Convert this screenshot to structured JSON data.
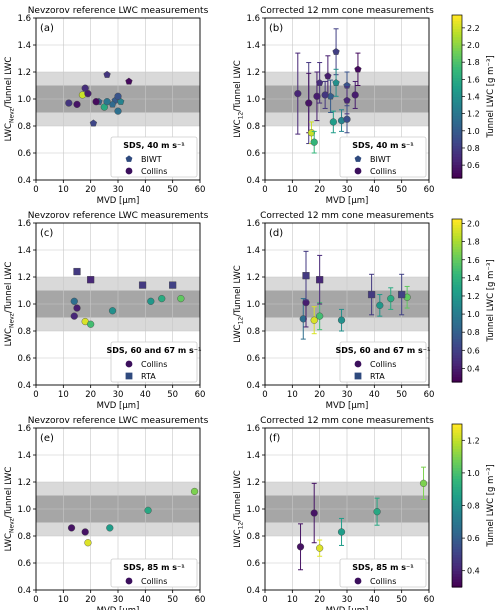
{
  "colors": {
    "band_outer": "#d9d9d9",
    "band_inner": "#a6a6a6",
    "viridis": [
      "#440154",
      "#482878",
      "#3e4989",
      "#31688e",
      "#26828e",
      "#1f9e89",
      "#35b779",
      "#6ece58",
      "#b5de2b",
      "#fde725"
    ]
  },
  "chart_data": [
    {
      "id": "a",
      "type": "scatter",
      "panel_label": "(a)",
      "title": "Nevzorov reference LWC measurements",
      "xlabel": "MVD [µm]",
      "ylabel_main": "LWC",
      "ylabel_sub": "Nevz",
      "ylabel_rest": "/Tunnel LWC",
      "xlim": [
        0,
        60
      ],
      "ylim": [
        0.4,
        1.6
      ],
      "xticks": [
        "0",
        "10",
        "20",
        "30",
        "40",
        "50",
        "60"
      ],
      "yticks": [
        "0.4",
        "0.6",
        "0.8",
        "1.0",
        "1.2",
        "1.4",
        "1.6"
      ],
      "grid": true,
      "legend_position": "bottom-right",
      "legend_title": "SDS, 40 m s⁻¹",
      "legend_items": [
        {
          "label": "BIWT",
          "marker": "pentagon"
        },
        {
          "label": "Collins",
          "marker": "circle"
        }
      ],
      "colorbar": {
        "present": true,
        "label": "Tunnel LWC [g m⁻³]",
        "ticks": [
          "0.6",
          "0.8",
          "1.0",
          "1.2",
          "1.4",
          "1.6",
          "1.8",
          "2.0",
          "2.2"
        ],
        "range": [
          0.45,
          2.35
        ]
      },
      "series": [
        {
          "name": "BIWT",
          "marker": "pentagon",
          "points": [
            {
              "x": 21,
              "y": 0.82,
              "c": 0.85
            },
            {
              "x": 23,
              "y": 0.98,
              "c": 1.05
            },
            {
              "x": 26,
              "y": 1.18,
              "c": 0.75
            },
            {
              "x": 29,
              "y": 0.99,
              "c": 1.0
            },
            {
              "x": 31,
              "y": 0.98,
              "c": 1.3
            },
            {
              "x": 34,
              "y": 1.13,
              "c": 0.5
            },
            {
              "x": 28,
              "y": 0.96,
              "c": 1.1
            }
          ]
        },
        {
          "name": "Collins",
          "marker": "circle",
          "points": [
            {
              "x": 12,
              "y": 0.97,
              "c": 0.75
            },
            {
              "x": 15,
              "y": 0.96,
              "c": 0.55
            },
            {
              "x": 17,
              "y": 1.03,
              "c": 2.2
            },
            {
              "x": 18,
              "y": 1.08,
              "c": 0.7
            },
            {
              "x": 19,
              "y": 1.04,
              "c": 0.6
            },
            {
              "x": 22,
              "y": 0.98,
              "c": 0.5
            },
            {
              "x": 25,
              "y": 0.94,
              "c": 1.6
            },
            {
              "x": 26,
              "y": 0.98,
              "c": 1.2
            },
            {
              "x": 30,
              "y": 0.91,
              "c": 1.15
            },
            {
              "x": 30,
              "y": 1.02,
              "c": 0.95
            }
          ]
        }
      ]
    },
    {
      "id": "b",
      "type": "scatter",
      "panel_label": "(b)",
      "title": "Corrected 12 mm cone measurements",
      "xlabel": "MVD [µm]",
      "ylabel_main": "LWC",
      "ylabel_sub": "12",
      "ylabel_rest": "/Tunnel LWC",
      "xlim": [
        0,
        60
      ],
      "ylim": [
        0.4,
        1.6
      ],
      "xticks": [
        "0",
        "10",
        "20",
        "30",
        "40",
        "50",
        "60"
      ],
      "yticks": [
        "0.4",
        "0.6",
        "0.8",
        "1.0",
        "1.2",
        "1.4",
        "1.6"
      ],
      "grid": true,
      "legend_position": "bottom-right",
      "legend_title": "SDS, 40 m s⁻¹",
      "legend_items": [
        {
          "label": "BIWT",
          "marker": "pentagon"
        },
        {
          "label": "Collins",
          "marker": "circle"
        }
      ],
      "colorbar": {
        "present": true,
        "label": "Tunnel LWC [g m⁻³]",
        "ticks": [
          "0.6",
          "0.8",
          "1.0",
          "1.2",
          "1.4",
          "1.6",
          "1.8",
          "2.0",
          "2.2"
        ],
        "range": [
          0.45,
          2.35
        ]
      },
      "series": [
        {
          "name": "BIWT",
          "marker": "pentagon",
          "points": [
            {
              "x": 16,
              "y": 0.97,
              "c": 0.75,
              "err": 0.3
            },
            {
              "x": 20,
              "y": 1.12,
              "c": 0.7,
              "err": 0.15
            },
            {
              "x": 23,
              "y": 1.17,
              "c": 0.6,
              "err": 0.15
            },
            {
              "x": 24,
              "y": 1.02,
              "c": 1.0,
              "err": 0.12
            },
            {
              "x": 26,
              "y": 1.35,
              "c": 0.8,
              "err": 0.17
            },
            {
              "x": 26,
              "y": 1.12,
              "c": 1.4,
              "err": 0.1
            },
            {
              "x": 30,
              "y": 1.1,
              "c": 0.95,
              "err": 0.1
            },
            {
              "x": 34,
              "y": 1.22,
              "c": 0.5,
              "err": 0.12
            },
            {
              "x": 30,
              "y": 0.99,
              "c": 0.65,
              "err": 0.1
            }
          ]
        },
        {
          "name": "Collins",
          "marker": "circle",
          "points": [
            {
              "x": 12,
              "y": 1.04,
              "c": 0.65,
              "err": 0.3
            },
            {
              "x": 16,
              "y": 0.97,
              "c": 0.55,
              "err": 0.22
            },
            {
              "x": 17,
              "y": 0.75,
              "c": 2.2,
              "err": 0.08
            },
            {
              "x": 18,
              "y": 0.68,
              "c": 1.7,
              "err": 0.08
            },
            {
              "x": 19,
              "y": 1.02,
              "c": 0.6,
              "err": 0.18
            },
            {
              "x": 22,
              "y": 1.03,
              "c": 0.75,
              "err": 0.1
            },
            {
              "x": 25,
              "y": 0.83,
              "c": 1.5,
              "err": 0.08
            },
            {
              "x": 28,
              "y": 0.84,
              "c": 1.3,
              "err": 0.08
            },
            {
              "x": 30,
              "y": 0.85,
              "c": 0.9,
              "err": 0.1
            },
            {
              "x": 33,
              "y": 1.03,
              "c": 0.6,
              "err": 0.1
            }
          ]
        }
      ]
    },
    {
      "id": "c",
      "type": "scatter",
      "panel_label": "(c)",
      "title": "Nevzorov reference LWC measurements",
      "xlabel": "MVD [µm]",
      "ylabel_main": "LWC",
      "ylabel_sub": "Nevz",
      "ylabel_rest": "/Tunnel LWC",
      "xlim": [
        0,
        60
      ],
      "ylim": [
        0.4,
        1.6
      ],
      "xticks": [
        "0",
        "10",
        "20",
        "30",
        "40",
        "50",
        "60"
      ],
      "yticks": [
        "0.4",
        "0.6",
        "0.8",
        "1.0",
        "1.2",
        "1.4",
        "1.6"
      ],
      "grid": true,
      "legend_position": "bottom-right",
      "legend_title": "SDS, 60 and 67 m s⁻¹",
      "legend_items": [
        {
          "label": "Collins",
          "marker": "circle"
        },
        {
          "label": "RTA",
          "marker": "square"
        }
      ],
      "colorbar": {
        "present": true,
        "label": "Tunnel LWC [g m⁻³]",
        "ticks": [
          "0.4",
          "0.6",
          "0.8",
          "1.0",
          "1.2",
          "1.4",
          "1.6",
          "1.8",
          "2.0"
        ],
        "range": [
          0.25,
          2.05
        ]
      },
      "series": [
        {
          "name": "Collins",
          "marker": "circle",
          "points": [
            {
              "x": 14,
              "y": 1.02,
              "c": 0.9
            },
            {
              "x": 14,
              "y": 0.91,
              "c": 0.45
            },
            {
              "x": 15,
              "y": 0.97,
              "c": 0.4
            },
            {
              "x": 18,
              "y": 0.87,
              "c": 1.95
            },
            {
              "x": 20,
              "y": 0.85,
              "c": 1.5
            },
            {
              "x": 28,
              "y": 0.95,
              "c": 1.15
            },
            {
              "x": 42,
              "y": 1.02,
              "c": 1.2
            },
            {
              "x": 46,
              "y": 1.04,
              "c": 1.35
            },
            {
              "x": 53,
              "y": 1.04,
              "c": 1.6
            }
          ]
        },
        {
          "name": "RTA",
          "marker": "square",
          "points": [
            {
              "x": 15,
              "y": 1.24,
              "c": 0.55
            },
            {
              "x": 20,
              "y": 1.18,
              "c": 0.45
            },
            {
              "x": 39,
              "y": 1.14,
              "c": 0.55
            },
            {
              "x": 50,
              "y": 1.14,
              "c": 0.6
            }
          ]
        }
      ]
    },
    {
      "id": "d",
      "type": "scatter",
      "panel_label": "(d)",
      "title": "Corrected 12 mm cone measurements",
      "xlabel": "MVD [µm]",
      "ylabel_main": "LWC",
      "ylabel_sub": "12",
      "ylabel_rest": "/Tunnel LWC",
      "xlim": [
        0,
        60
      ],
      "ylim": [
        0.4,
        1.6
      ],
      "xticks": [
        "0",
        "10",
        "20",
        "30",
        "40",
        "50",
        "60"
      ],
      "yticks": [
        "0.4",
        "0.6",
        "0.8",
        "1.0",
        "1.2",
        "1.4",
        "1.6"
      ],
      "grid": true,
      "legend_position": "bottom-right",
      "legend_title": "SDS, 60 and 67 m s⁻¹",
      "legend_items": [
        {
          "label": "Collins",
          "marker": "circle"
        },
        {
          "label": "RTA",
          "marker": "square"
        }
      ],
      "colorbar": {
        "present": true,
        "label": "Tunnel LWC [g m⁻³]",
        "ticks": [
          "0.4",
          "0.6",
          "0.8",
          "1.0",
          "1.2",
          "1.4",
          "1.6",
          "1.8",
          "2.0"
        ],
        "range": [
          0.25,
          2.05
        ]
      },
      "series": [
        {
          "name": "Collins",
          "marker": "circle",
          "points": [
            {
              "x": 14,
              "y": 0.89,
              "c": 0.9,
              "err": 0.15
            },
            {
              "x": 15,
              "y": 1.01,
              "c": 0.4,
              "err": 0.18
            },
            {
              "x": 18,
              "y": 0.88,
              "c": 1.95,
              "err": 0.1
            },
            {
              "x": 20,
              "y": 0.91,
              "c": 1.5,
              "err": 0.1
            },
            {
              "x": 28,
              "y": 0.88,
              "c": 1.15,
              "err": 0.08
            },
            {
              "x": 42,
              "y": 0.99,
              "c": 1.2,
              "err": 0.08
            },
            {
              "x": 46,
              "y": 1.04,
              "c": 1.35,
              "err": 0.08
            },
            {
              "x": 52,
              "y": 1.05,
              "c": 1.6,
              "err": 0.08
            }
          ]
        },
        {
          "name": "RTA",
          "marker": "square",
          "points": [
            {
              "x": 15,
              "y": 1.21,
              "c": 0.55,
              "err": 0.18
            },
            {
              "x": 20,
              "y": 1.18,
              "c": 0.45,
              "err": 0.18
            },
            {
              "x": 39,
              "y": 1.07,
              "c": 0.55,
              "err": 0.15
            },
            {
              "x": 50,
              "y": 1.07,
              "c": 0.6,
              "err": 0.15
            }
          ]
        }
      ]
    },
    {
      "id": "e",
      "type": "scatter",
      "panel_label": "(e)",
      "title": "Nevzorov reference LWC measurements",
      "xlabel": "MVD [µm]",
      "ylabel_main": "LWC",
      "ylabel_sub": "Nevz",
      "ylabel_rest": "/Tunnel LWC",
      "xlim": [
        0,
        60
      ],
      "ylim": [
        0.4,
        1.6
      ],
      "xticks": [
        "0",
        "10",
        "20",
        "30",
        "40",
        "50",
        "60"
      ],
      "yticks": [
        "0.4",
        "0.6",
        "0.8",
        "1.0",
        "1.2",
        "1.4",
        "1.6"
      ],
      "grid": true,
      "legend_position": "bottom-right",
      "legend_title": "SDS, 85 m s⁻¹",
      "legend_items": [
        {
          "label": "Collins",
          "marker": "circle"
        }
      ],
      "colorbar": {
        "present": true,
        "label": "Tunnel LWC [g m⁻³]",
        "ticks": [
          "0.4",
          "0.6",
          "0.8",
          "1.0",
          "1.2"
        ],
        "range": [
          0.3,
          1.3
        ]
      },
      "series": [
        {
          "name": "Collins",
          "marker": "circle",
          "points": [
            {
              "x": 13,
              "y": 0.86,
              "c": 0.35
            },
            {
              "x": 18,
              "y": 0.83,
              "c": 0.35
            },
            {
              "x": 19,
              "y": 0.75,
              "c": 1.25
            },
            {
              "x": 27,
              "y": 0.86,
              "c": 0.85
            },
            {
              "x": 41,
              "y": 0.99,
              "c": 0.9
            },
            {
              "x": 58,
              "y": 1.13,
              "c": 1.1
            }
          ]
        }
      ]
    },
    {
      "id": "f",
      "type": "scatter",
      "panel_label": "(f)",
      "title": "Corrected 12 mm cone measurements",
      "xlabel": "MVD [µm]",
      "ylabel_main": "LWC",
      "ylabel_sub": "12",
      "ylabel_rest": "/Tunnel LWC",
      "xlim": [
        0,
        60
      ],
      "ylim": [
        0.4,
        1.6
      ],
      "xticks": [
        "0",
        "10",
        "20",
        "30",
        "40",
        "50",
        "60"
      ],
      "yticks": [
        "0.4",
        "0.6",
        "0.8",
        "1.0",
        "1.2",
        "1.4",
        "1.6"
      ],
      "grid": true,
      "legend_position": "bottom-right",
      "legend_title": "SDS, 85 m s⁻¹",
      "legend_items": [
        {
          "label": "Collins",
          "marker": "circle"
        }
      ],
      "colorbar": {
        "present": true,
        "label": "Tunnel LWC [g m⁻³]",
        "ticks": [
          "0.4",
          "0.6",
          "0.8",
          "1.0",
          "1.2"
        ],
        "range": [
          0.3,
          1.3
        ]
      },
      "series": [
        {
          "name": "Collins",
          "marker": "circle",
          "points": [
            {
              "x": 13,
              "y": 0.72,
              "c": 0.35,
              "err": 0.17
            },
            {
              "x": 18,
              "y": 0.97,
              "c": 0.35,
              "err": 0.22
            },
            {
              "x": 20,
              "y": 0.71,
              "c": 1.25,
              "err": 0.06
            },
            {
              "x": 28,
              "y": 0.83,
              "c": 0.85,
              "err": 0.1
            },
            {
              "x": 41,
              "y": 0.98,
              "c": 0.9,
              "err": 0.1
            },
            {
              "x": 58,
              "y": 1.19,
              "c": 1.1,
              "err": 0.12
            }
          ]
        }
      ]
    }
  ]
}
